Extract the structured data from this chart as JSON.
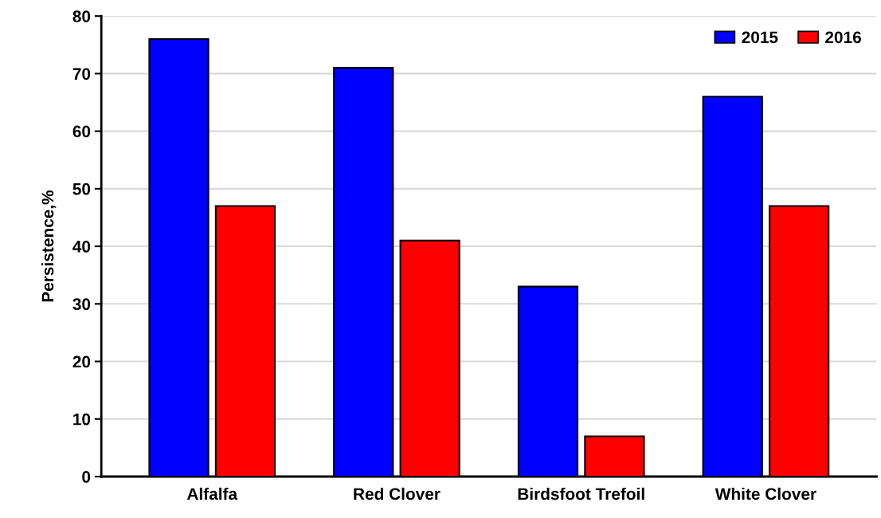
{
  "chart_data": {
    "type": "bar",
    "ylabel": "Persistence,%",
    "categories": [
      "Alfalfa",
      "Red Clover",
      "Birdsfoot Trefoil",
      "White Clover"
    ],
    "series": [
      {
        "name": "2015",
        "color": "#0000ff",
        "values": [
          76,
          71,
          33,
          66
        ]
      },
      {
        "name": "2016",
        "color": "#ff0000",
        "values": [
          47,
          41,
          7,
          47
        ]
      }
    ],
    "ylim": [
      0,
      80
    ],
    "yticks": [
      0,
      10,
      20,
      30,
      40,
      50,
      60,
      70,
      80
    ],
    "grid": "y",
    "legend": "top right"
  }
}
